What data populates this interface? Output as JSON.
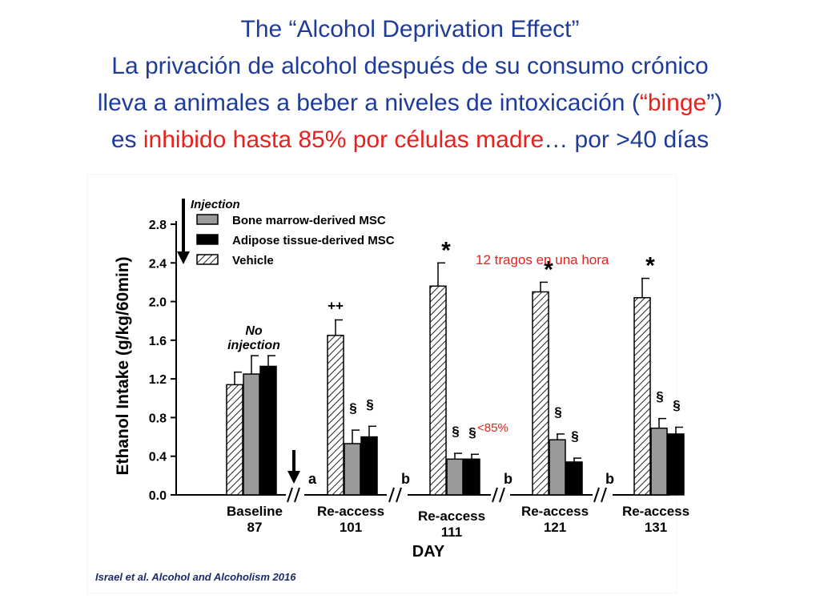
{
  "slide": {
    "title_lines": [
      [
        {
          "text": "The “Alcohol Deprivation Effect”",
          "color": "blue"
        }
      ],
      [
        {
          "text": "La privación de alcohol  después de su consumo crónico",
          "color": "blue"
        }
      ],
      [
        {
          "text": "lleva a animales a beber a niveles de intoxicación (",
          "color": "blue"
        },
        {
          "text": "“binge",
          "color": "red"
        },
        {
          "text": "”)",
          "color": "blue"
        }
      ],
      [
        {
          "text": "es ",
          "color": "blue"
        },
        {
          "text": "inhibido hasta 85% por células madre",
          "color": "red"
        },
        {
          "text": "… por >40 días",
          "color": "blue"
        }
      ]
    ],
    "citation": "Israel et al. Alcohol and Alcoholism 2016",
    "colors": {
      "blue": "#1f3c99",
      "red": "#e8201e"
    }
  },
  "chart_data": {
    "type": "bar",
    "ylabel": "Ethanol Intake (g/kg/60min)",
    "xlabel": "DAY",
    "ylim": [
      0,
      2.8
    ],
    "yticks": [
      "0.0",
      "0.4",
      "0.8",
      "1.2",
      "1.6",
      "2.0",
      "2.4",
      "2.8"
    ],
    "legend": {
      "title": "Injection",
      "position": "top-left",
      "entries": [
        {
          "name": "Bone marrow-derived MSC",
          "fill": "gray"
        },
        {
          "name": "Adipose tissue-derived MSC",
          "fill": "black"
        },
        {
          "name": "Vehicle",
          "fill": "hatched"
        }
      ]
    },
    "series_order": [
      "Vehicle",
      "Bone marrow-derived MSC",
      "Adipose tissue-derived MSC"
    ],
    "groups": [
      {
        "label_top": "Baseline",
        "label_bottom": "87",
        "note": "No\ninjection",
        "values": [
          1.14,
          1.25,
          1.33
        ],
        "errors": [
          0.13,
          0.19,
          0.11
        ],
        "annotations": [
          "",
          "",
          ""
        ],
        "letter": ""
      },
      {
        "label_top": "Re-access",
        "label_bottom": "101",
        "note": "",
        "values": [
          1.65,
          0.53,
          0.6
        ],
        "errors": [
          0.16,
          0.14,
          0.11
        ],
        "annotations": [
          "++",
          "§",
          "§"
        ],
        "letter": "a"
      },
      {
        "label_top": "Re-access",
        "label_bottom": "111",
        "note": "",
        "values": [
          2.16,
          0.37,
          0.37
        ],
        "errors": [
          0.24,
          0.06,
          0.05
        ],
        "annotations": [
          "*",
          "§",
          "§"
        ],
        "letter": "b"
      },
      {
        "label_top": "Re-access",
        "label_bottom": "121",
        "note": "",
        "values": [
          2.1,
          0.57,
          0.34
        ],
        "errors": [
          0.1,
          0.06,
          0.04
        ],
        "annotations": [
          "*",
          "§",
          "§"
        ],
        "letter": "b"
      },
      {
        "label_top": "Re-access",
        "label_bottom": "131",
        "note": "",
        "values": [
          2.04,
          0.69,
          0.63
        ],
        "errors": [
          0.2,
          0.1,
          0.07
        ],
        "annotations": [
          "*",
          "§",
          "§"
        ],
        "letter": "b"
      }
    ],
    "callouts": [
      {
        "text": "12 tragos en una hora",
        "color": "#e8201e"
      },
      {
        "text": "<85%",
        "color": "#e8201e"
      }
    ]
  }
}
